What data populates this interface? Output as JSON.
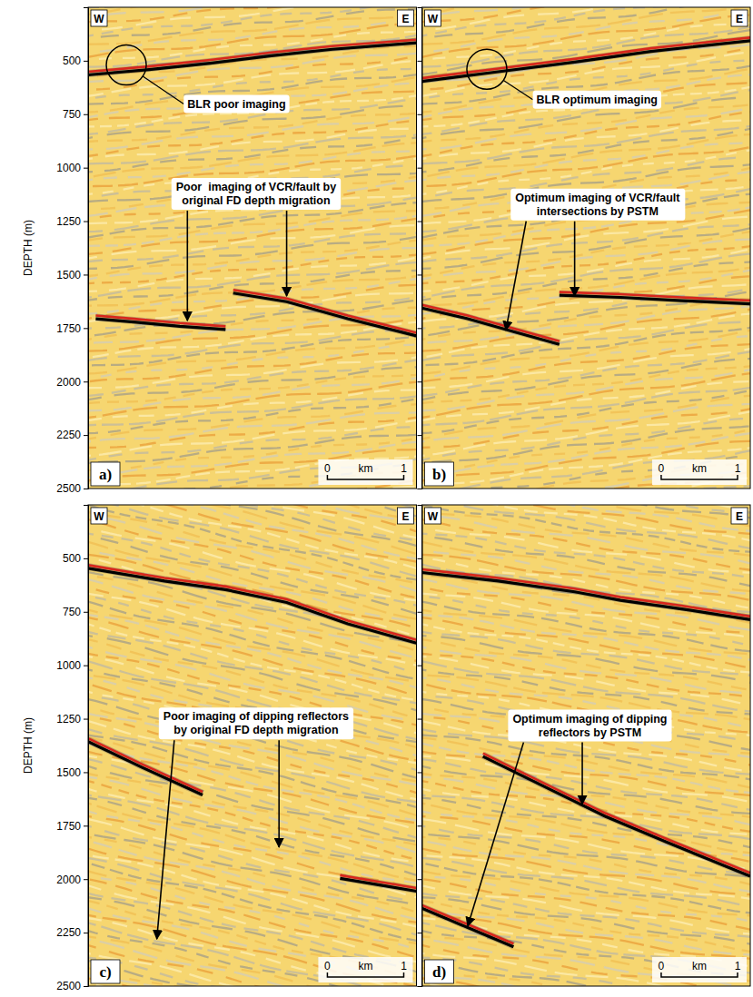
{
  "chart_data": [
    {
      "type": "seismic_section",
      "panel_label": "a)",
      "west": "W",
      "east": "E",
      "ylabel": "DEPTH (m)",
      "xlim": [
        0,
        4.3
      ],
      "ylim": [
        250,
        2500
      ],
      "yticks": [
        500,
        750,
        1000,
        1250,
        1500,
        1750,
        2000,
        2250,
        2500
      ],
      "tick_labels": "y",
      "scale_bar": {
        "values": [
          0,
          1
        ],
        "unit": "km"
      },
      "reflectors": [
        {
          "x": [
            0,
            0.8,
            1.6,
            2.4,
            3.2,
            4.3
          ],
          "y": [
            560,
            535,
            505,
            470,
            440,
            410
          ]
        },
        {
          "x": [
            0.1,
            0.6,
            1.2,
            1.8
          ],
          "y": [
            1700,
            1715,
            1735,
            1750
          ]
        },
        {
          "x": [
            1.9,
            2.6,
            3.4,
            4.3
          ],
          "y": [
            1580,
            1620,
            1700,
            1780
          ]
        }
      ],
      "circle": {
        "x": 0.5,
        "y": 520,
        "label": "BLR poor imaging",
        "label_x": 1.3,
        "label_y": 700
      },
      "annotations": [
        {
          "text": [
            "Poor  imaging of VCR/fault by",
            "original FD depth migration"
          ],
          "x": 2.2,
          "y": 1120,
          "arrows": [
            {
              "x": 1.3,
              "y": 1715
            },
            {
              "x": 2.6,
              "y": 1600
            }
          ]
        }
      ]
    },
    {
      "type": "seismic_section",
      "panel_label": "b)",
      "west": "W",
      "east": "E",
      "xlim": [
        0,
        4.3
      ],
      "ylim": [
        250,
        2500
      ],
      "yticks": [
        500,
        750,
        1000,
        1250,
        1500,
        1750,
        2000,
        2250,
        2500
      ],
      "tick_labels": false,
      "scale_bar": {
        "values": [
          0,
          1
        ],
        "unit": "km"
      },
      "reflectors": [
        {
          "x": [
            0,
            1,
            2,
            3,
            4.3
          ],
          "y": [
            590,
            545,
            500,
            450,
            400
          ]
        },
        {
          "x": [
            0,
            0.6,
            1.2,
            1.8
          ],
          "y": [
            1650,
            1700,
            1760,
            1820
          ]
        },
        {
          "x": [
            1.8,
            2.6,
            3.4,
            4.3
          ],
          "y": [
            1590,
            1600,
            1615,
            1630
          ]
        }
      ],
      "circle": {
        "x": 0.85,
        "y": 540,
        "label": "BLR optimum imaging",
        "label_x": 1.5,
        "label_y": 680
      },
      "annotations": [
        {
          "text": [
            "Optimum imaging of VCR/fault",
            "intersections by PSTM"
          ],
          "x": 2.3,
          "y": 1170,
          "arrows": [
            {
              "x": 1.1,
              "y": 1760
            },
            {
              "x": 2.0,
              "y": 1600
            }
          ]
        }
      ]
    },
    {
      "type": "seismic_section",
      "panel_label": "c)",
      "west": "W",
      "east": "E",
      "ylabel": "DEPTH (m)",
      "xlim": [
        0,
        4.3
      ],
      "ylim": [
        250,
        2500
      ],
      "yticks": [
        500,
        750,
        1000,
        1250,
        1500,
        1750,
        2000,
        2250,
        2500
      ],
      "tick_labels": "y",
      "scale_bar": {
        "values": [
          0,
          1
        ],
        "unit": "km"
      },
      "reflectors": [
        {
          "x": [
            0,
            1,
            1.8,
            2.6,
            3.4,
            4.3
          ],
          "y": [
            540,
            600,
            640,
            700,
            800,
            890
          ]
        },
        {
          "x": [
            0,
            0.7,
            1.5
          ],
          "y": [
            1350,
            1470,
            1600
          ]
        },
        {
          "x": [
            3.3,
            3.8,
            4.3
          ],
          "y": [
            1990,
            2020,
            2050
          ]
        }
      ],
      "annotations": [
        {
          "text": [
            "Poor imaging of dipping reflectors",
            "by original FD depth migration"
          ],
          "x": 2.2,
          "y": 1270,
          "arrows": [
            {
              "x": 0.9,
              "y": 2280
            },
            {
              "x": 2.5,
              "y": 1850
            }
          ]
        }
      ]
    },
    {
      "type": "seismic_section",
      "panel_label": "d)",
      "west": "W",
      "east": "E",
      "xlim": [
        0,
        4.3
      ],
      "ylim": [
        250,
        2500
      ],
      "yticks": [
        500,
        750,
        1000,
        1250,
        1500,
        1750,
        2000,
        2250,
        2500
      ],
      "tick_labels": false,
      "scale_bar": {
        "values": [
          0,
          1
        ],
        "unit": "km"
      },
      "reflectors": [
        {
          "x": [
            0,
            1,
            2,
            2.6,
            3.4,
            4.3
          ],
          "y": [
            560,
            600,
            650,
            690,
            730,
            780
          ]
        },
        {
          "x": [
            0.8,
            1.6,
            2.4,
            3.2,
            4.3
          ],
          "y": [
            1420,
            1560,
            1700,
            1820,
            1980
          ]
        },
        {
          "x": [
            0,
            0.6,
            1.2
          ],
          "y": [
            2130,
            2220,
            2310
          ]
        }
      ],
      "annotations": [
        {
          "text": [
            "Optimum imaging of dipping",
            "reflectors by PSTM"
          ],
          "x": 2.2,
          "y": 1280,
          "arrows": [
            {
              "x": 2.1,
              "y": 1650
            },
            {
              "x": 0.6,
              "y": 2220
            }
          ]
        }
      ]
    }
  ]
}
